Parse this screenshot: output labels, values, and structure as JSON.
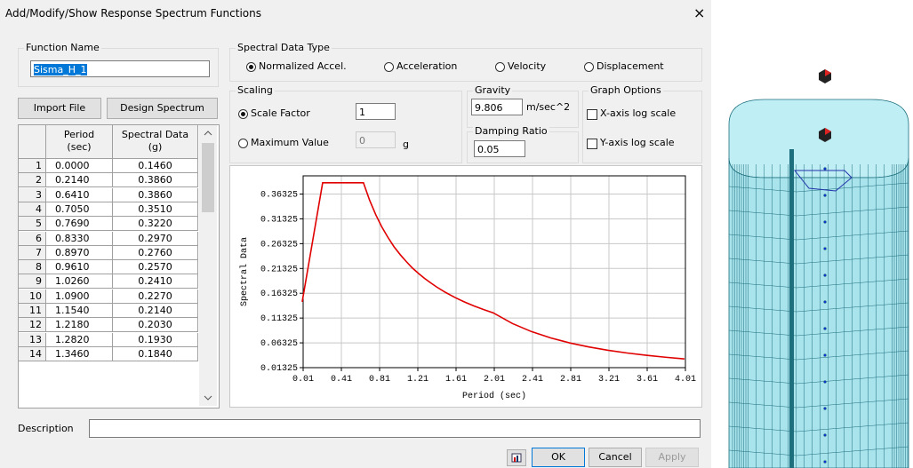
{
  "window": {
    "title": "Add/Modify/Show Response Spectrum Functions",
    "close": "×"
  },
  "function_name": {
    "label": "Function Name",
    "value": "Sisma_H_1"
  },
  "buttons": {
    "import_file": "Import File",
    "design_spectrum": "Design Spectrum",
    "ok": "OK",
    "cancel": "Cancel",
    "apply": "Apply"
  },
  "table": {
    "columns": [
      [
        "Period",
        "(sec)"
      ],
      [
        "Spectral Data",
        "(g)"
      ]
    ],
    "rows": [
      [
        "1",
        "0.0000",
        "0.1460"
      ],
      [
        "2",
        "0.2140",
        "0.3860"
      ],
      [
        "3",
        "0.6410",
        "0.3860"
      ],
      [
        "4",
        "0.7050",
        "0.3510"
      ],
      [
        "5",
        "0.7690",
        "0.3220"
      ],
      [
        "6",
        "0.8330",
        "0.2970"
      ],
      [
        "7",
        "0.8970",
        "0.2760"
      ],
      [
        "8",
        "0.9610",
        "0.2570"
      ],
      [
        "9",
        "1.0260",
        "0.2410"
      ],
      [
        "10",
        "1.0900",
        "0.2270"
      ],
      [
        "11",
        "1.1540",
        "0.2140"
      ],
      [
        "12",
        "1.2180",
        "0.2030"
      ],
      [
        "13",
        "1.2820",
        "0.1930"
      ],
      [
        "14",
        "1.3460",
        "0.1840"
      ]
    ]
  },
  "spectral_data_type": {
    "label": "Spectral Data Type",
    "options": [
      "Normalized Accel.",
      "Acceleration",
      "Velocity",
      "Displacement"
    ],
    "selected": 0
  },
  "scaling": {
    "label": "Scaling",
    "options": [
      "Scale Factor",
      "Maximum Value"
    ],
    "selected": 0,
    "scale_factor": "1",
    "maximum_value": "0",
    "maximum_unit": "g"
  },
  "gravity": {
    "label": "Gravity",
    "value": "9.806",
    "unit": "m/sec^2"
  },
  "damping_ratio": {
    "label": "Damping Ratio",
    "value": "0.05"
  },
  "graph_options": {
    "label": "Graph Options",
    "options": [
      "X-axis log scale",
      "Y-axis log scale"
    ],
    "checked": [
      false,
      false
    ]
  },
  "description": {
    "label": "Description"
  },
  "chart_data": {
    "type": "line",
    "xlabel": "Period (sec)",
    "ylabel": "Spectral Data",
    "x": [
      0,
      0.214,
      0.641,
      0.705,
      0.769,
      0.833,
      0.897,
      0.961,
      1.026,
      1.09,
      1.154,
      1.218,
      1.282,
      1.346,
      1.41,
      1.5,
      1.6,
      1.7,
      1.8,
      1.9,
      2.0,
      2.2,
      2.4,
      2.6,
      2.8,
      3.0,
      3.2,
      3.4,
      3.6,
      3.8,
      4.0
    ],
    "series": [
      {
        "color": "#e00000",
        "values": [
          0.146,
          0.386,
          0.386,
          0.351,
          0.322,
          0.297,
          0.276,
          0.257,
          0.241,
          0.227,
          0.214,
          0.203,
          0.193,
          0.184,
          0.1755,
          0.165,
          0.1546,
          0.1455,
          0.1375,
          0.1302,
          0.1237,
          0.1022,
          0.0859,
          0.0732,
          0.0631,
          0.055,
          0.0483,
          0.0428,
          0.0382,
          0.0343,
          0.0309
        ]
      }
    ],
    "xlim": [
      0.01,
      4.01
    ],
    "xticks": [
      0.01,
      0.41,
      0.81,
      1.21,
      1.61,
      2.01,
      2.41,
      2.81,
      3.21,
      3.61,
      4.01
    ],
    "ylim": [
      0.01325,
      0.4
    ],
    "yticks": [
      0.01325,
      0.06325,
      0.11325,
      0.16325,
      0.21325,
      0.26325,
      0.31325,
      0.36325
    ],
    "grid": true
  }
}
